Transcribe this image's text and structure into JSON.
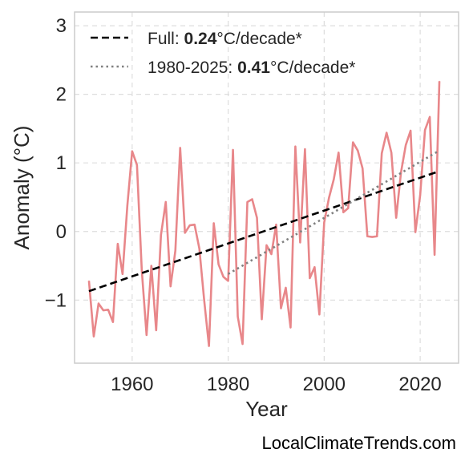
{
  "chart_data": {
    "type": "line",
    "xlabel": "Year",
    "ylabel": "Anomaly (°C)",
    "xlim": [
      1948,
      2028
    ],
    "ylim": [
      -1.92,
      3.2
    ],
    "x_ticks": [
      1960,
      1980,
      2000,
      2020
    ],
    "x_tick_labels": [
      "1960",
      "1980",
      "2000",
      "2020"
    ],
    "y_ticks": [
      -1,
      0,
      1,
      2,
      3
    ],
    "y_tick_labels": [
      "−1",
      "0",
      "1",
      "2",
      "3"
    ],
    "grid": true,
    "legend_placement": "top-left",
    "series": [
      {
        "color": "#e8878a",
        "x": [
          1951,
          1952,
          1953,
          1954,
          1955,
          1956,
          1957,
          1958,
          1959,
          1960,
          1961,
          1962,
          1963,
          1964,
          1965,
          1966,
          1967,
          1968,
          1969,
          1970,
          1971,
          1972,
          1973,
          1974,
          1975,
          1976,
          1977,
          1978,
          1979,
          1980,
          1981,
          1982,
          1983,
          1984,
          1985,
          1986,
          1987,
          1988,
          1989,
          1990,
          1991,
          1992,
          1993,
          1994,
          1995,
          1996,
          1997,
          1998,
          1999,
          2000,
          2001,
          2002,
          2003,
          2004,
          2005,
          2006,
          2007,
          2008,
          2009,
          2010,
          2011,
          2012,
          2013,
          2014,
          2015,
          2016,
          2017,
          2018,
          2019,
          2020,
          2021,
          2022,
          2023,
          2024
        ],
        "values": [
          -0.72,
          -1.53,
          -1.05,
          -1.15,
          -1.14,
          -1.32,
          -0.18,
          -0.62,
          0.38,
          1.17,
          0.97,
          -0.56,
          -1.51,
          -0.5,
          -1.44,
          -0.05,
          0.43,
          -0.8,
          -0.28,
          1.22,
          -0.02,
          0.09,
          0.1,
          -0.25,
          -1.0,
          -1.67,
          0.12,
          -0.48,
          -0.66,
          -0.72,
          1.19,
          -1.24,
          -1.64,
          0.43,
          0.47,
          0.2,
          -1.28,
          -0.2,
          -0.33,
          0.1,
          -1.12,
          -0.82,
          -1.4,
          1.24,
          -0.16,
          1.2,
          -0.68,
          -0.52,
          -1.21,
          0.13,
          0.49,
          0.76,
          1.15,
          0.28,
          0.34,
          1.3,
          1.18,
          0.92,
          -0.07,
          -0.08,
          -0.07,
          1.14,
          1.44,
          1.15,
          0.2,
          0.86,
          1.26,
          1.47,
          -0.01,
          0.53,
          1.48,
          1.67,
          -0.34,
          2.19
        ]
      },
      {
        "name": "Full: ",
        "name_bold": "0.24",
        "name_suffix": "°C/decade*",
        "color": "#000000",
        "dash": "dashed",
        "x": [
          1951,
          2024
        ],
        "values": [
          -0.87,
          0.88
        ]
      },
      {
        "name": "1980-2025: ",
        "name_bold": "0.41",
        "name_suffix": "°C/decade*",
        "color": "#808080",
        "dash": "dotted",
        "x": [
          1980,
          2024
        ],
        "values": [
          -0.62,
          1.18
        ]
      }
    ]
  },
  "watermark": "LocalClimateTrends.com"
}
